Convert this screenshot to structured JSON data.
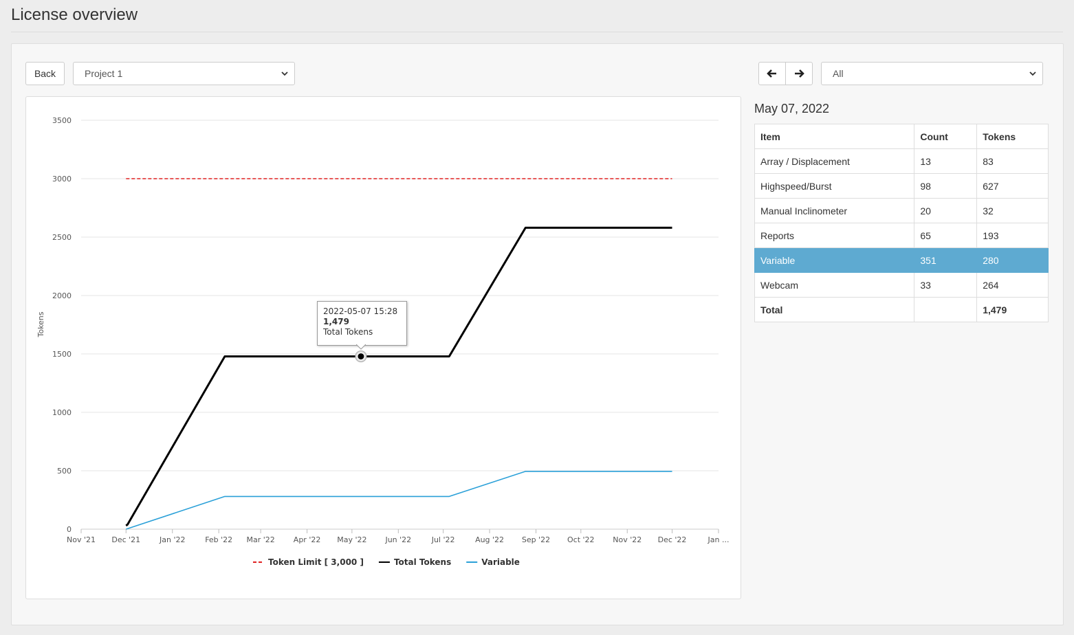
{
  "page": {
    "title": "License overview"
  },
  "toolbar": {
    "back_label": "Back",
    "project_select": "Project 1",
    "filter_select": "All",
    "prev_icon": "arrow-left-icon",
    "next_icon": "arrow-right-icon"
  },
  "summary": {
    "date": "May 07, 2022",
    "columns": [
      "Item",
      "Count",
      "Tokens"
    ],
    "rows": [
      {
        "item": "Array / Displacement",
        "count": "13",
        "tokens": "83"
      },
      {
        "item": "Highspeed/Burst",
        "count": "98",
        "tokens": "627"
      },
      {
        "item": "Manual Inclinometer",
        "count": "20",
        "tokens": "32"
      },
      {
        "item": "Reports",
        "count": "65",
        "tokens": "193"
      },
      {
        "item": "Variable",
        "count": "351",
        "tokens": "280",
        "selected": true
      },
      {
        "item": "Webcam",
        "count": "33",
        "tokens": "264"
      }
    ],
    "total": {
      "label": "Total",
      "count": "",
      "tokens": "1,479"
    },
    "highlight_color": "#5eaad1"
  },
  "tooltip": {
    "timestamp": "2022-05-07 15:28",
    "value": "1,479",
    "series": "Total Tokens"
  },
  "chart_data": {
    "type": "line",
    "ylabel": "Tokens",
    "ylim": [
      0,
      3500
    ],
    "yticks": [
      0,
      500,
      1000,
      1500,
      2000,
      2500,
      3000,
      3500
    ],
    "x_range": [
      "2021-11-01",
      "2023-01-01"
    ],
    "x_ticks": [
      "Nov '21",
      "Dec '21",
      "Jan '22",
      "Feb '22",
      "Mar '22",
      "Apr '22",
      "May '22",
      "Jun '22",
      "Jul '22",
      "Aug '22",
      "Sep '22",
      "Oct '22",
      "Nov '22",
      "Dec '22",
      "Jan ..."
    ],
    "grid": true,
    "legend": "bottom",
    "series": [
      {
        "name": "Token Limit [ 3,000 ]",
        "color": "#e02020",
        "dashed": true,
        "points": [
          [
            "2021-12-01",
            3000
          ],
          [
            "2022-12-01",
            3000
          ]
        ]
      },
      {
        "name": "Total Tokens",
        "color": "#000000",
        "dashed": false,
        "points": [
          [
            "2021-12-01",
            30
          ],
          [
            "2021-12-02",
            40
          ],
          [
            "2022-02-05",
            1479
          ],
          [
            "2022-07-05",
            1479
          ],
          [
            "2022-08-25",
            2580
          ],
          [
            "2022-12-01",
            2580
          ]
        ]
      },
      {
        "name": "Variable",
        "color": "#2aa0d8",
        "dashed": false,
        "points": [
          [
            "2021-12-01",
            0
          ],
          [
            "2022-02-05",
            280
          ],
          [
            "2022-07-05",
            280
          ],
          [
            "2022-08-25",
            495
          ],
          [
            "2022-12-01",
            495
          ]
        ]
      }
    ],
    "highlight_point": [
      "2022-05-07",
      1479
    ]
  }
}
